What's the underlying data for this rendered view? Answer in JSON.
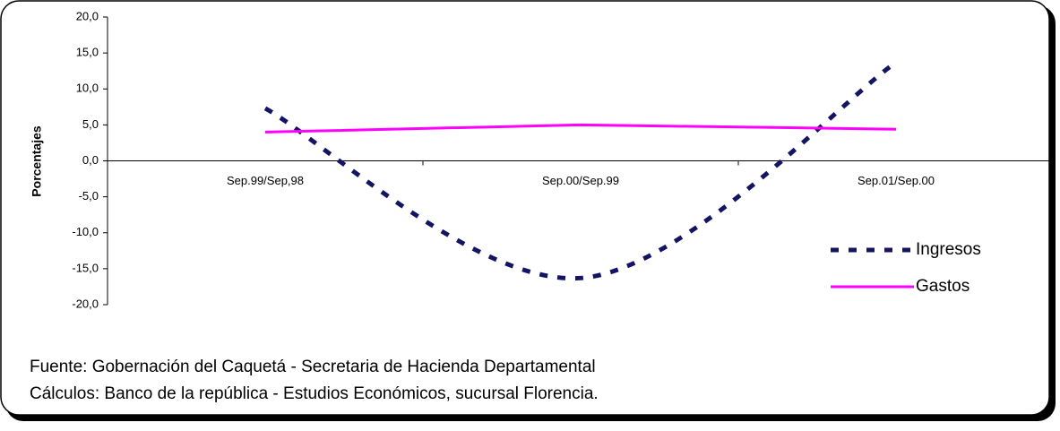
{
  "chart_data": {
    "type": "line",
    "y_label": "Porcentajes",
    "categories": [
      "Sep.99/Sep,98",
      "Sep.00/Sep.99",
      "Sep.01/Sep.00"
    ],
    "series": [
      {
        "name": "Ingresos",
        "color": "#141464",
        "dashed": true,
        "smooth": true,
        "values": [
          7.3,
          -16.3,
          13.7
        ]
      },
      {
        "name": "Gastos",
        "color": "#ff00ff",
        "dashed": false,
        "smooth": false,
        "values": [
          4.0,
          5.0,
          4.4
        ]
      }
    ],
    "ylim": [
      -20,
      20
    ],
    "yticks": [
      {
        "value": -20,
        "label": "-20,0"
      },
      {
        "value": -15,
        "label": "-15,0"
      },
      {
        "value": -10,
        "label": "-10,0"
      },
      {
        "value": -5,
        "label": "-5,0"
      },
      {
        "value": 0,
        "label": "0,0"
      },
      {
        "value": 5,
        "label": "5,0"
      },
      {
        "value": 10,
        "label": "10,0"
      },
      {
        "value": 15,
        "label": "15,0"
      },
      {
        "value": 20,
        "label": "20,0"
      }
    ],
    "legend": "right",
    "source": [
      "Fuente: Gobernación del Caquetá - Secretaria de Hacienda Departamental",
      "Cálculos:  Banco de la república - Estudios Económicos, sucursal Florencia."
    ]
  }
}
